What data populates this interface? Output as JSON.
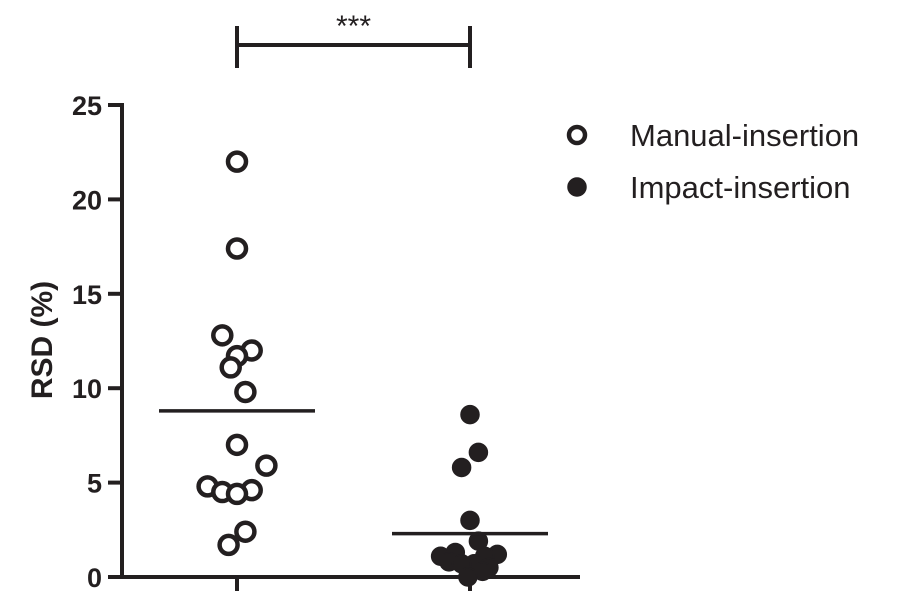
{
  "chart_data": {
    "type": "scatter",
    "title": "",
    "ylabel": "RSD (%)",
    "xlabel": "",
    "ylim": [
      0,
      25
    ],
    "yticks": [
      "0",
      "5",
      "10",
      "15",
      "20",
      "25"
    ],
    "grid": false,
    "legend_position": "top-right",
    "significance": {
      "label": "***",
      "between": [
        "Manual-insertion",
        "Impact-insertion"
      ]
    },
    "series": [
      {
        "name": "Manual-insertion",
        "marker": "open-circle",
        "mean": 8.8,
        "values": [
          22.0,
          17.4,
          12.8,
          12.0,
          11.7,
          11.1,
          9.8,
          7.0,
          5.9,
          4.8,
          4.6,
          4.5,
          4.4,
          2.4,
          1.7
        ],
        "jitter": [
          0,
          0,
          -0.7,
          0.7,
          0,
          -0.3,
          0.4,
          0,
          1.4,
          -1.4,
          0.7,
          -0.7,
          0,
          0.4,
          -0.4
        ]
      },
      {
        "name": "Impact-insertion",
        "marker": "filled-circle",
        "mean": 2.3,
        "values": [
          8.6,
          6.6,
          5.8,
          3.0,
          1.9,
          1.3,
          1.2,
          1.1,
          1.1,
          0.8,
          0.7,
          0.7,
          0.5,
          0.3,
          0.0
        ],
        "jitter": [
          0,
          0.4,
          -0.4,
          0,
          0.4,
          -0.7,
          1.3,
          -1.4,
          0.7,
          -1.0,
          0.2,
          -0.4,
          0.9,
          0.6,
          -0.1
        ]
      }
    ],
    "colors": {
      "ink": "#231f20",
      "background": "#ffffff"
    }
  }
}
